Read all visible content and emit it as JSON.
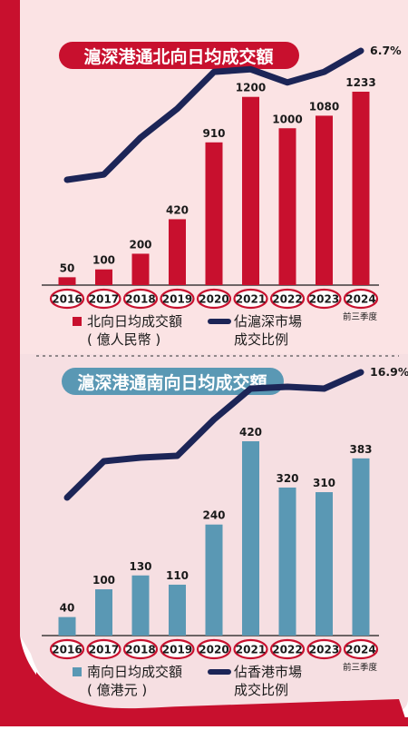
{
  "colors": {
    "accent_red": "#c8102e",
    "panel_top_bg": "#fbe3e4",
    "panel_bottom_bg": "#f6dfe2",
    "north_bar": "#c8102e",
    "south_bar": "#5a98b4",
    "line": "#1c2557",
    "year_badge_border": "#c8102e",
    "year_badge_fill": "#ffffff",
    "text_dark": "#1a1a1a"
  },
  "chart_data": [
    {
      "type": "bar",
      "title": "滬深港通北向日均成交額",
      "categories": [
        "2016",
        "2017",
        "2018",
        "2019",
        "2020",
        "2021",
        "2022",
        "2023",
        "2024"
      ],
      "category_note": "前三季度",
      "ylim": [
        0,
        1400
      ],
      "series": [
        {
          "name": "北向日均成交額（億人民幣）",
          "type": "bar",
          "values": [
            50,
            100,
            200,
            420,
            910,
            1200,
            1000,
            1080,
            1233
          ]
        },
        {
          "name": "佔滬深市場成交比例",
          "type": "line",
          "values": [
            1.8,
            2.0,
            3.4,
            4.5,
            5.9,
            6.0,
            5.5,
            5.9,
            6.7
          ]
        }
      ],
      "line_ylim": [
        0,
        7
      ],
      "line_end_label": "6.7%",
      "legend": {
        "bar_label_lines": [
          "北向日均成交額",
          "( 億人民幣 )"
        ],
        "line_label_lines": [
          "佔滬深市場",
          "成交比例"
        ]
      }
    },
    {
      "type": "bar",
      "title": "滬深港通南向日均成交額",
      "categories": [
        "2016",
        "2017",
        "2018",
        "2019",
        "2020",
        "2021",
        "2022",
        "2023",
        "2024"
      ],
      "category_note": "前三季度",
      "ylim": [
        0,
        480
      ],
      "series": [
        {
          "name": "南向日均成交額（億港元）",
          "type": "bar",
          "values": [
            40,
            100,
            130,
            110,
            240,
            420,
            320,
            310,
            383
          ]
        },
        {
          "name": "佔香港市場成交比例",
          "type": "line",
          "values": [
            10.0,
            12.0,
            12.2,
            12.3,
            14.3,
            16.0,
            16.1,
            16.0,
            16.9
          ]
        }
      ],
      "line_ylim": [
        0,
        17
      ],
      "line_end_label": "16.9%",
      "legend": {
        "bar_label_lines": [
          "南向日均成交額",
          "( 億港元 )"
        ],
        "line_label_lines": [
          "佔香港市場",
          "成交比例"
        ]
      }
    }
  ]
}
